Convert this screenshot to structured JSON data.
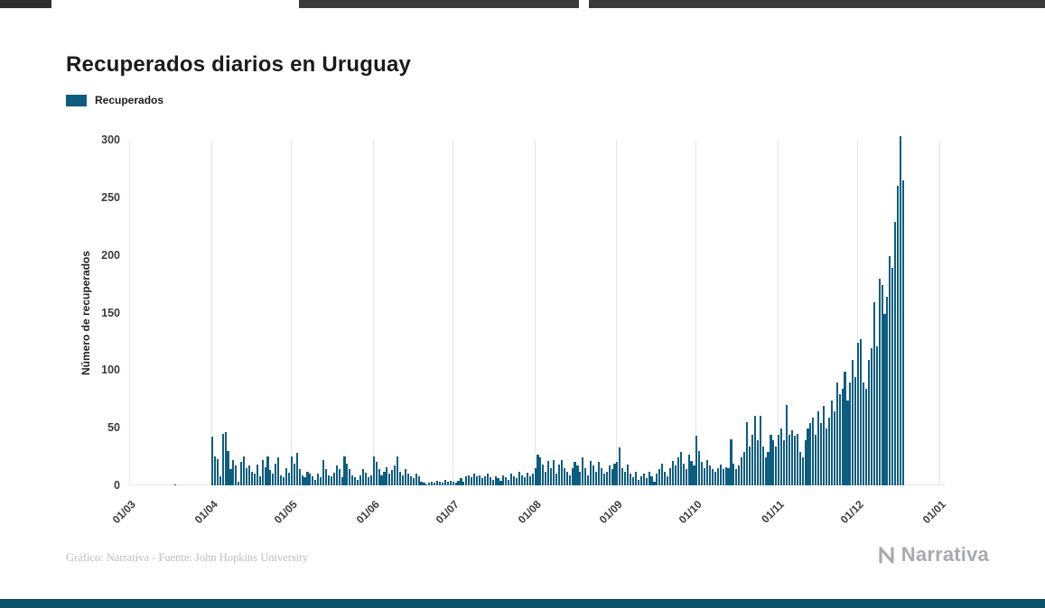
{
  "header": {
    "title": "Recuperados diarios en Uruguay"
  },
  "legend": {
    "label": "Recuperados"
  },
  "footer": {
    "credit": "Gráfico: Narrativa - Fuente: John Hopkins University",
    "brand": "Narrativa"
  },
  "colors": {
    "bar": "#0e5c7e",
    "bottom_bar": "#0f516b",
    "grid": "#e5e5e5",
    "tick_text": "#3c3c3c",
    "credit_text": "#bdbdbd",
    "brand_text": "#a7abb0"
  },
  "chart_data": {
    "type": "bar",
    "title": "Recuperados diarios en Uruguay",
    "xlabel": "",
    "ylabel": "Número de recuperados",
    "ylim": [
      0,
      300
    ],
    "yticks": [
      0,
      50,
      100,
      150,
      200,
      250,
      300
    ],
    "xtick_labels": [
      "01/03",
      "01/04",
      "01/05",
      "01/06",
      "01/07",
      "01/08",
      "01/09",
      "01/10",
      "01/11",
      "01/12",
      "01/01"
    ],
    "xtick_day_offsets": [
      0,
      31,
      61,
      92,
      122,
      153,
      184,
      214,
      245,
      275,
      306
    ],
    "total_days": 306,
    "grid": "vertical-only",
    "legend_position": "top-left",
    "series": [
      {
        "name": "Recuperados",
        "values": [
          0,
          0,
          0,
          0,
          0,
          0,
          0,
          0,
          0,
          0,
          0,
          0,
          0,
          0,
          0,
          0,
          0,
          1,
          0,
          0,
          0,
          0,
          0,
          0,
          0,
          0,
          0,
          0,
          0,
          0,
          0,
          42,
          25,
          23,
          8,
          45,
          46,
          30,
          14,
          22,
          17,
          3,
          20,
          25,
          15,
          17,
          12,
          10,
          18,
          8,
          22,
          16,
          25,
          13,
          10,
          19,
          24,
          9,
          7,
          15,
          11,
          25,
          19,
          28,
          14,
          9,
          7,
          12,
          10,
          8,
          5,
          10,
          7,
          22,
          14,
          9,
          8,
          11,
          17,
          14,
          7,
          25,
          19,
          14,
          9,
          7,
          5,
          9,
          14,
          11,
          7,
          9,
          25,
          20,
          14,
          9,
          12,
          16,
          10,
          13,
          17,
          25,
          12,
          9,
          14,
          10,
          8,
          6,
          10,
          8,
          3,
          2,
          1,
          2,
          3,
          2,
          4,
          3,
          2,
          5,
          3,
          4,
          3,
          2,
          4,
          6,
          3,
          8,
          9,
          7,
          10,
          8,
          9,
          6,
          8,
          10,
          7,
          5,
          8,
          6,
          4,
          9,
          7,
          5,
          10,
          8,
          6,
          12,
          9,
          7,
          11,
          8,
          10,
          15,
          27,
          24,
          18,
          12,
          21,
          15,
          22,
          10,
          18,
          22,
          15,
          12,
          9,
          15,
          20,
          17,
          12,
          24,
          15,
          9,
          21,
          17,
          12,
          20,
          15,
          10,
          12,
          17,
          14,
          19,
          20,
          33,
          15,
          12,
          18,
          10,
          7,
          12,
          5,
          8,
          10,
          6,
          12,
          8,
          3,
          10,
          14,
          19,
          12,
          8,
          15,
          21,
          17,
          24,
          29,
          19,
          14,
          27,
          21,
          17,
          43,
          30,
          20,
          15,
          22,
          17,
          14,
          12,
          15,
          18,
          14,
          16,
          15,
          40,
          19,
          14,
          17,
          24,
          29,
          55,
          34,
          44,
          60,
          39,
          60,
          34,
          24,
          29,
          44,
          39,
          34,
          44,
          49,
          39,
          70,
          44,
          48,
          43,
          45,
          29,
          24,
          39,
          49,
          54,
          59,
          44,
          64,
          54,
          69,
          49,
          59,
          74,
          64,
          89,
          79,
          84,
          99,
          74,
          89,
          109,
          94,
          124,
          127,
          89,
          84,
          109,
          119,
          159,
          121,
          179,
          174,
          149,
          164,
          199,
          189,
          229,
          260,
          303,
          265
        ]
      }
    ]
  }
}
